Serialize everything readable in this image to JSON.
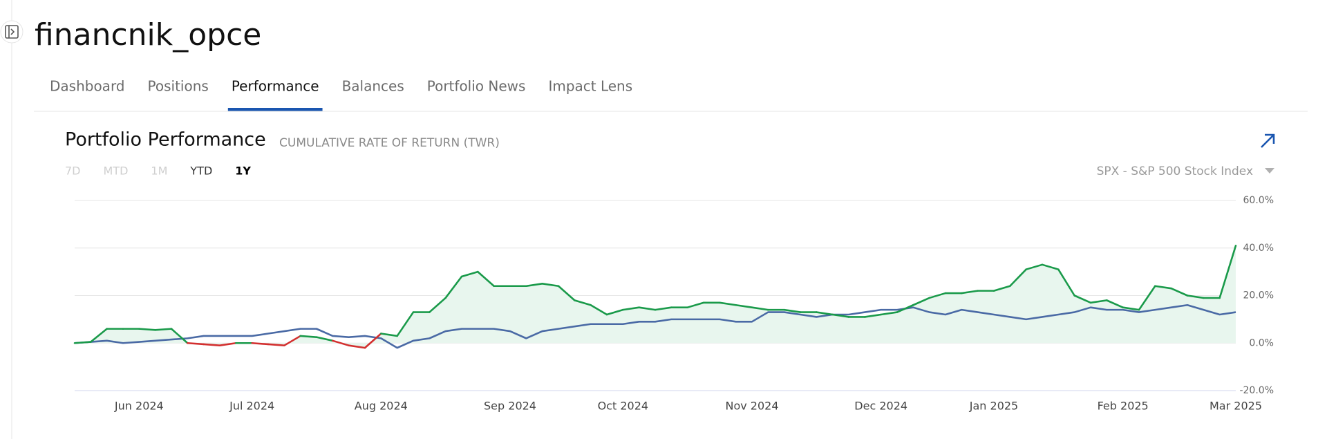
{
  "header": {
    "title": "financnik_opce"
  },
  "tabs": {
    "items": [
      "Dashboard",
      "Positions",
      "Performance",
      "Balances",
      "Portfolio News",
      "Impact Lens"
    ],
    "active": 2
  },
  "chart_data": {
    "type": "line",
    "title": "Portfolio Performance",
    "subtitle": "CUMULATIVE RATE OF RETURN (TWR)",
    "ranges": [
      "7D",
      "MTD",
      "1M",
      "YTD",
      "1Y"
    ],
    "disabled_ranges": [
      0,
      1,
      2
    ],
    "active_range": 4,
    "benchmark": "SPX - S&P 500 Stock Index",
    "categories": [
      null,
      null,
      null,
      null,
      "Jun 2024",
      null,
      null,
      null,
      null,
      null,
      null,
      "Jul 2024",
      null,
      null,
      null,
      null,
      null,
      null,
      null,
      "Aug 2024",
      null,
      null,
      null,
      null,
      null,
      null,
      null,
      "Sep 2024",
      null,
      null,
      null,
      null,
      null,
      null,
      "Oct 2024",
      null,
      null,
      null,
      null,
      null,
      null,
      null,
      "Nov 2024",
      null,
      null,
      null,
      null,
      null,
      null,
      null,
      "Dec 2024",
      null,
      null,
      null,
      null,
      null,
      null,
      "Jan 2025",
      null,
      null,
      null,
      null,
      null,
      null,
      null,
      "Feb 2025",
      null,
      null,
      null,
      null,
      null,
      null,
      "Mar 2025"
    ],
    "series": [
      {
        "color": "#1a9a4a",
        "negative_color": "#d32f2f",
        "fill": "#e8f6ee",
        "values": [
          0,
          0.5,
          6,
          6,
          6,
          5.5,
          6,
          0,
          -0.5,
          -1,
          0,
          0,
          -0.5,
          -1,
          3,
          2.5,
          1,
          -1,
          -2,
          4,
          3,
          13,
          13,
          19,
          28,
          30,
          24,
          24,
          24,
          25,
          24,
          18,
          16,
          12,
          14,
          15,
          14,
          15,
          15,
          17,
          17,
          16,
          15,
          14,
          14,
          13,
          13,
          12,
          11,
          11,
          12,
          13,
          16,
          19,
          21,
          21,
          22,
          22,
          24,
          31,
          33,
          31,
          20,
          17,
          18,
          15,
          14,
          24,
          23,
          20,
          19,
          19,
          41
        ]
      },
      {
        "color": "#4a6aa5",
        "values": [
          0,
          0.5,
          1,
          0,
          0.5,
          1,
          1.5,
          2,
          3,
          3,
          3,
          3,
          4,
          5,
          6,
          6,
          3,
          2.5,
          3,
          2,
          -2,
          1,
          2,
          5,
          6,
          6,
          6,
          5,
          2,
          5,
          6,
          7,
          8,
          8,
          8,
          9,
          9,
          10,
          10,
          10,
          10,
          9,
          9,
          13,
          13,
          12,
          11,
          12,
          12,
          13,
          14,
          14,
          15,
          13,
          12,
          14,
          13,
          12,
          11,
          10,
          11,
          12,
          13,
          15,
          14,
          14,
          13,
          14,
          15,
          16,
          14,
          12,
          13
        ]
      }
    ],
    "ylim": [
      -20,
      60
    ],
    "yticks": [
      {
        "value": -20,
        "label": "-20.0%"
      },
      {
        "value": 0,
        "label": "0.0%"
      },
      {
        "value": 20,
        "label": "20.0%"
      },
      {
        "value": 40,
        "label": "40.0%"
      },
      {
        "value": 60,
        "label": "60.0%"
      }
    ],
    "grid": true
  }
}
